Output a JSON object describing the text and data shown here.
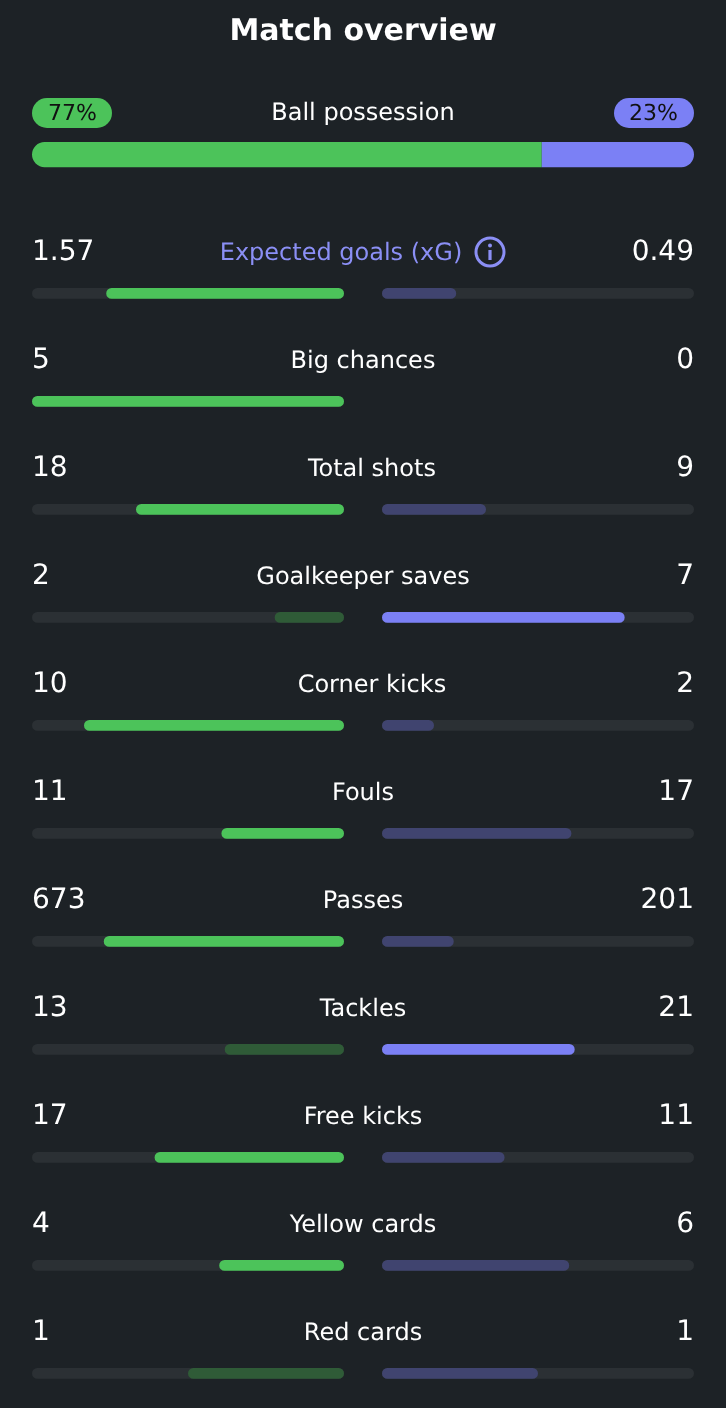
{
  "chart_data": {
    "type": "other",
    "title": "Match overview",
    "categories": [
      "Ball possession",
      "Expected goals (xG)",
      "Big chances",
      "Total shots",
      "Goalkeeper saves",
      "Corner kicks",
      "Fouls",
      "Passes",
      "Tackles",
      "Free kicks",
      "Yellow cards",
      "Red cards"
    ],
    "series": [
      {
        "values": [
          77,
          1.57,
          5,
          18,
          2,
          10,
          11,
          673,
          13,
          17,
          4,
          1
        ],
        "value_labels": [
          "77%",
          "1.57",
          "5",
          "18",
          "2",
          "10",
          "11",
          "673",
          "13",
          "17",
          "4",
          "1"
        ],
        "colors": [
          "#4cc35a",
          "#4cc35a",
          "#4cc35a",
          "#4cc35a",
          "#2f5b37",
          "#4cc35a",
          "#4cc35a",
          "#4cc35a",
          "#2f5b37",
          "#4cc35a",
          "#4cc35a",
          "#2f5b37"
        ]
      },
      {
        "values": [
          23,
          0.49,
          0,
          9,
          7,
          2,
          17,
          201,
          21,
          11,
          6,
          1
        ],
        "value_labels": [
          "23%",
          "0.49",
          "0",
          "9",
          "7",
          "2",
          "17",
          "201",
          "21",
          "11",
          "6",
          "1"
        ],
        "colors": [
          "#7b80f5",
          "#40446f",
          "#40446f",
          "#40446f",
          "#7b80f5",
          "#40446f",
          "#40446f",
          "#40446f",
          "#7b80f5",
          "#40446f",
          "#40446f",
          "#40446f"
        ]
      }
    ]
  }
}
